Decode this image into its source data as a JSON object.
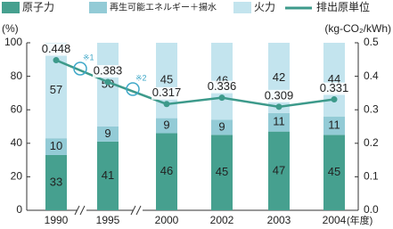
{
  "chart_data": {
    "type": "bar",
    "stacked": true,
    "categories": [
      "1990",
      "1995",
      "2000",
      "2002",
      "2003",
      "2004"
    ],
    "x_unit": "(年度)",
    "y_label": "(%)",
    "y2_label": "(kg-CO₂/kWh)",
    "series": [
      {
        "name": "原子力",
        "color": "#46a08f",
        "values": [
          33,
          41,
          46,
          45,
          47,
          45
        ]
      },
      {
        "name": "再生可能エネルギー＋揚水",
        "color": "#93cbd6",
        "values": [
          10,
          9,
          9,
          9,
          11,
          11
        ]
      },
      {
        "name": "火力",
        "color": "#c3e4ee",
        "values": [
          57,
          50,
          45,
          46,
          42,
          44
        ]
      },
      {
        "name": "排出原単位",
        "type": "line",
        "axis": "y2",
        "color": "#3d9a8b",
        "values": [
          0.448,
          0.383,
          0.317,
          0.336,
          0.309,
          0.331
        ]
      }
    ],
    "annotations": [
      "※1",
      "※2"
    ],
    "ylim": [
      0,
      100
    ],
    "yticks": [
      0,
      20,
      40,
      60,
      80,
      100
    ],
    "y2lim": [
      0,
      0.5
    ],
    "y2ticks": [
      {
        "value": 0,
        "label": "0.0"
      },
      0.1,
      0.2,
      0.3,
      0.4,
      0.5
    ]
  }
}
